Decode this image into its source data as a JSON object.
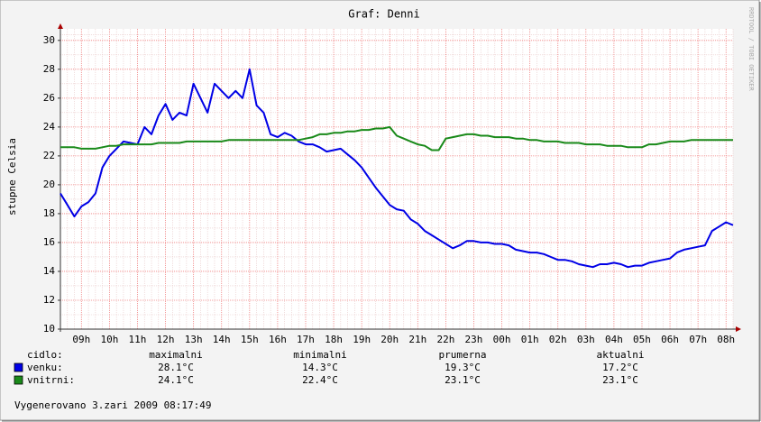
{
  "chart_data": {
    "type": "line",
    "title": "Graf: Denni",
    "y_label": "stupne Celsia",
    "watermark": "RRDTOOL / TOBI OETIKER",
    "categories": [
      null,
      null,
      null,
      "09h",
      null,
      null,
      null,
      "10h",
      null,
      null,
      null,
      "11h",
      null,
      null,
      null,
      "12h",
      null,
      null,
      null,
      "13h",
      null,
      null,
      null,
      "14h",
      null,
      null,
      null,
      "15h",
      null,
      null,
      null,
      "16h",
      null,
      null,
      null,
      "17h",
      null,
      null,
      null,
      "18h",
      null,
      null,
      null,
      "19h",
      null,
      null,
      null,
      "20h",
      null,
      null,
      null,
      "21h",
      null,
      null,
      null,
      "22h",
      null,
      null,
      null,
      "23h",
      null,
      null,
      null,
      "00h",
      null,
      null,
      null,
      "01h",
      null,
      null,
      null,
      "02h",
      null,
      null,
      null,
      "03h",
      null,
      null,
      null,
      "04h",
      null,
      null,
      null,
      "05h",
      null,
      null,
      null,
      "06h",
      null,
      null,
      null,
      "07h",
      null,
      null,
      null,
      "08h",
      null
    ],
    "series": [
      {
        "name": "venku:",
        "color": "#0000e6",
        "values": [
          19.4,
          18.6,
          17.8,
          18.5,
          18.8,
          19.4,
          21.2,
          22.0,
          22.5,
          23.0,
          22.9,
          22.8,
          24.0,
          23.5,
          24.8,
          25.6,
          24.5,
          25.0,
          24.8,
          27.0,
          26.0,
          25.0,
          27.0,
          26.5,
          26.0,
          26.5,
          26.0,
          28.0,
          25.5,
          25.0,
          23.5,
          23.3,
          23.6,
          23.4,
          23.0,
          22.8,
          22.8,
          22.6,
          22.3,
          22.4,
          22.5,
          22.1,
          21.7,
          21.2,
          20.5,
          19.8,
          19.2,
          18.6,
          18.3,
          18.2,
          17.6,
          17.3,
          16.8,
          16.5,
          16.2,
          15.9,
          15.6,
          15.8,
          16.1,
          16.1,
          16.0,
          16.0,
          15.9,
          15.9,
          15.8,
          15.5,
          15.4,
          15.3,
          15.3,
          15.2,
          15.0,
          14.8,
          14.8,
          14.7,
          14.5,
          14.4,
          14.3,
          14.5,
          14.5,
          14.6,
          14.5,
          14.3,
          14.4,
          14.4,
          14.6,
          14.7,
          14.8,
          14.9,
          15.3,
          15.5,
          15.6,
          15.7,
          15.8,
          16.8,
          17.1,
          17.4,
          17.2
        ]
      },
      {
        "name": "vnitrni:",
        "color": "#1a8a1a",
        "values": [
          22.6,
          22.6,
          22.6,
          22.5,
          22.5,
          22.5,
          22.6,
          22.7,
          22.7,
          22.8,
          22.8,
          22.8,
          22.8,
          22.8,
          22.9,
          22.9,
          22.9,
          22.9,
          23.0,
          23.0,
          23.0,
          23.0,
          23.0,
          23.0,
          23.1,
          23.1,
          23.1,
          23.1,
          23.1,
          23.1,
          23.1,
          23.1,
          23.1,
          23.1,
          23.1,
          23.2,
          23.3,
          23.5,
          23.5,
          23.6,
          23.6,
          23.7,
          23.7,
          23.8,
          23.8,
          23.9,
          23.9,
          24.0,
          23.4,
          23.2,
          23.0,
          22.8,
          22.7,
          22.4,
          22.4,
          23.2,
          23.3,
          23.4,
          23.5,
          23.5,
          23.4,
          23.4,
          23.3,
          23.3,
          23.3,
          23.2,
          23.2,
          23.1,
          23.1,
          23.0,
          23.0,
          23.0,
          22.9,
          22.9,
          22.9,
          22.8,
          22.8,
          22.8,
          22.7,
          22.7,
          22.7,
          22.6,
          22.6,
          22.6,
          22.8,
          22.8,
          22.9,
          23.0,
          23.0,
          23.0,
          23.1,
          23.1,
          23.1,
          23.1,
          23.1,
          23.1,
          23.1
        ]
      }
    ],
    "ylim": [
      10,
      30.8
    ],
    "yticks": [
      10,
      12,
      14,
      16,
      18,
      20,
      22,
      24,
      26,
      28,
      30
    ],
    "grid": true,
    "stats": {
      "header": "cidlo:",
      "columns": [
        "maximalni",
        "minimalni",
        "prumerna",
        "aktualni"
      ],
      "rows": [
        [
          "28.1°C",
          "14.3°C",
          "19.3°C",
          "17.2°C"
        ],
        [
          "24.1°C",
          "22.4°C",
          "23.1°C",
          "23.1°C"
        ]
      ]
    },
    "footer": "Vygenerovano 3.zari 2009 08:17:49"
  }
}
